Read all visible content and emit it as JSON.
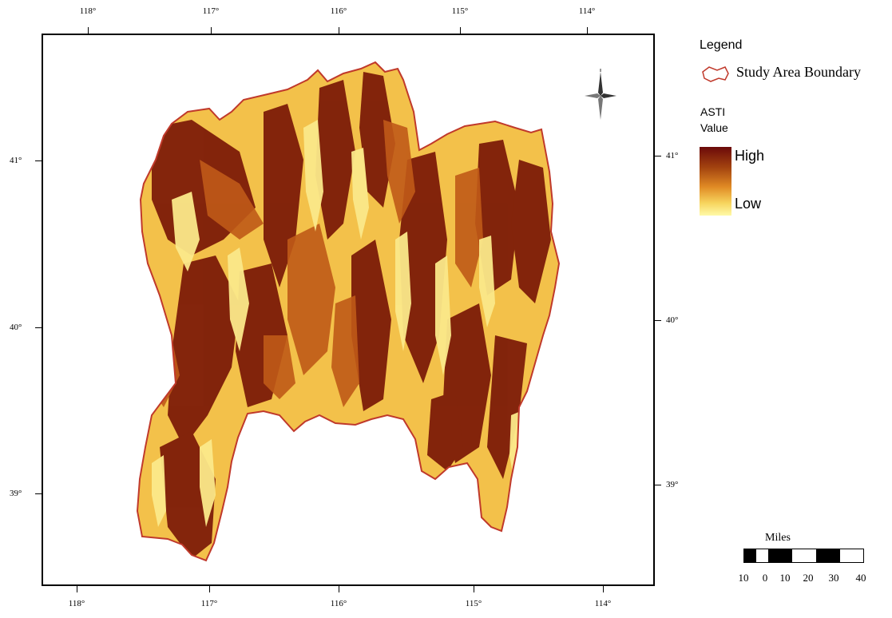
{
  "legend": {
    "title": "Legend",
    "boundary_label": "Study Area Boundary",
    "layer_title": "ASTI",
    "value_label": "Value",
    "high_label": "High",
    "low_label": "Low",
    "ramp_colors": [
      "#6b0a0a",
      "#a3430f",
      "#e08a24",
      "#f7d55e",
      "#fffaa8"
    ],
    "boundary_color": "#c0392b"
  },
  "graticule": {
    "top": [
      "118°",
      "117°",
      "116°",
      "115°",
      "114°"
    ],
    "bottom": [
      "118°",
      "117°",
      "116°",
      "115°",
      "114°"
    ],
    "left": [
      "41°",
      "40°",
      "39°"
    ],
    "right": [
      "41°",
      "40°",
      "39°"
    ]
  },
  "scale_bar": {
    "title": "Miles",
    "labels": [
      "10",
      "0",
      "10",
      "20",
      "30",
      "40"
    ]
  },
  "icons": {
    "north_arrow": "north-arrow-icon",
    "boundary_swatch": "polygon-outline-icon"
  }
}
